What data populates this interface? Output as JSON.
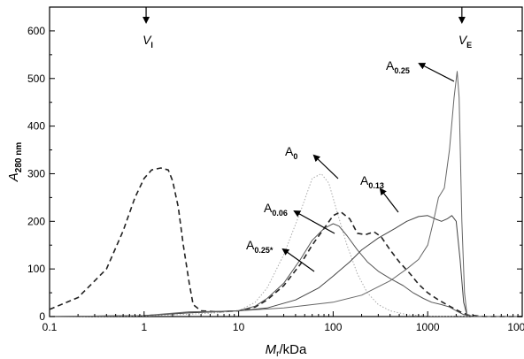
{
  "chart_data": {
    "type": "line",
    "x_scale": "log",
    "xlim": [
      0.1,
      10000
    ],
    "ylim": [
      0,
      650
    ],
    "x_ticks": [
      {
        "value": 0.1,
        "label": "0.1"
      },
      {
        "value": 1,
        "label": "1"
      },
      {
        "value": 10,
        "label": "10"
      },
      {
        "value": 100,
        "label": "100"
      },
      {
        "value": 1000,
        "label": "1000"
      },
      {
        "value": 10000,
        "label": "10000"
      }
    ],
    "y_ticks": [
      {
        "value": 0,
        "label": "0"
      },
      {
        "value": 100,
        "label": "100"
      },
      {
        "value": 200,
        "label": "200"
      },
      {
        "value": 300,
        "label": "300"
      },
      {
        "value": 400,
        "label": "400"
      },
      {
        "value": 500,
        "label": "500"
      },
      {
        "value": 600,
        "label": "600"
      }
    ],
    "xlabel": {
      "main": "M",
      "sub": "r",
      "rest": "/kDa"
    },
    "ylabel": {
      "main": "A",
      "sub": "280 nm"
    },
    "grid": false,
    "markers": [
      {
        "label": "V",
        "sub": "I",
        "x": 1.05
      },
      {
        "label": "V",
        "sub": "E",
        "x": 2300
      }
    ],
    "series": [
      {
        "name_main": "A",
        "name_sub": "0.25*",
        "style": "dashed",
        "color": "#222222",
        "points": [
          [
            0.1,
            15
          ],
          [
            0.2,
            40
          ],
          [
            0.4,
            100
          ],
          [
            0.6,
            180
          ],
          [
            0.8,
            250
          ],
          [
            1.0,
            290
          ],
          [
            1.2,
            308
          ],
          [
            1.5,
            312
          ],
          [
            1.8,
            308
          ],
          [
            2.0,
            285
          ],
          [
            2.3,
            230
          ],
          [
            2.6,
            150
          ],
          [
            3.0,
            70
          ],
          [
            3.3,
            25
          ],
          [
            4,
            12
          ],
          [
            6,
            10
          ],
          [
            10,
            12
          ],
          [
            15,
            20
          ],
          [
            20,
            35
          ],
          [
            30,
            65
          ],
          [
            45,
            110
          ],
          [
            60,
            150
          ],
          [
            80,
            185
          ],
          [
            100,
            212
          ],
          [
            120,
            220
          ],
          [
            150,
            205
          ],
          [
            180,
            175
          ],
          [
            220,
            172
          ],
          [
            270,
            178
          ],
          [
            320,
            168
          ],
          [
            400,
            140
          ],
          [
            500,
            115
          ],
          [
            650,
            90
          ],
          [
            800,
            68
          ],
          [
            1000,
            50
          ],
          [
            1300,
            35
          ],
          [
            1700,
            22
          ],
          [
            2200,
            10
          ],
          [
            2700,
            3
          ],
          [
            4000,
            0
          ],
          [
            10000,
            0
          ]
        ]
      },
      {
        "name_main": "A",
        "name_sub": "0",
        "style": "dotted",
        "color": "#aaaaaa",
        "points": [
          [
            0.1,
            0
          ],
          [
            1,
            1
          ],
          [
            3,
            5
          ],
          [
            6,
            8
          ],
          [
            10,
            12
          ],
          [
            15,
            30
          ],
          [
            20,
            60
          ],
          [
            30,
            130
          ],
          [
            45,
            220
          ],
          [
            60,
            290
          ],
          [
            75,
            300
          ],
          [
            90,
            280
          ],
          [
            110,
            220
          ],
          [
            140,
            150
          ],
          [
            180,
            90
          ],
          [
            230,
            50
          ],
          [
            300,
            25
          ],
          [
            400,
            12
          ],
          [
            600,
            4
          ],
          [
            1000,
            1
          ],
          [
            10000,
            0
          ]
        ]
      },
      {
        "name_main": "A",
        "name_sub": "0.06",
        "style": "solid",
        "color": "#555555",
        "points": [
          [
            0.1,
            0
          ],
          [
            1,
            2
          ],
          [
            3,
            8
          ],
          [
            6,
            10
          ],
          [
            10,
            12
          ],
          [
            15,
            22
          ],
          [
            20,
            38
          ],
          [
            30,
            70
          ],
          [
            45,
            120
          ],
          [
            60,
            160
          ],
          [
            80,
            185
          ],
          [
            100,
            195
          ],
          [
            115,
            190
          ],
          [
            140,
            170
          ],
          [
            180,
            140
          ],
          [
            230,
            115
          ],
          [
            300,
            95
          ],
          [
            400,
            80
          ],
          [
            550,
            65
          ],
          [
            700,
            50
          ],
          [
            900,
            38
          ],
          [
            1100,
            30
          ],
          [
            1400,
            25
          ],
          [
            1700,
            20
          ],
          [
            2000,
            12
          ],
          [
            2400,
            4
          ],
          [
            3000,
            0
          ],
          [
            10000,
            0
          ]
        ]
      },
      {
        "name_main": "A",
        "name_sub": "0.13",
        "style": "solid",
        "color": "#444444",
        "points": [
          [
            0.1,
            0
          ],
          [
            1,
            2
          ],
          [
            3,
            8
          ],
          [
            6,
            11
          ],
          [
            10,
            12
          ],
          [
            20,
            18
          ],
          [
            40,
            35
          ],
          [
            70,
            60
          ],
          [
            100,
            85
          ],
          [
            150,
            115
          ],
          [
            200,
            140
          ],
          [
            300,
            165
          ],
          [
            450,
            185
          ],
          [
            600,
            200
          ],
          [
            800,
            210
          ],
          [
            1000,
            212
          ],
          [
            1200,
            205
          ],
          [
            1400,
            200
          ],
          [
            1600,
            205
          ],
          [
            1800,
            212
          ],
          [
            2000,
            200
          ],
          [
            2200,
            120
          ],
          [
            2400,
            30
          ],
          [
            2600,
            3
          ],
          [
            3000,
            0
          ],
          [
            10000,
            0
          ]
        ]
      },
      {
        "name_main": "A",
        "name_sub": "0.25",
        "style": "solid",
        "color": "#666666",
        "points": [
          [
            0.1,
            0
          ],
          [
            1,
            2
          ],
          [
            3,
            10
          ],
          [
            6,
            11
          ],
          [
            10,
            12
          ],
          [
            30,
            18
          ],
          [
            60,
            25
          ],
          [
            100,
            30
          ],
          [
            200,
            45
          ],
          [
            400,
            75
          ],
          [
            600,
            100
          ],
          [
            800,
            120
          ],
          [
            1000,
            150
          ],
          [
            1150,
            200
          ],
          [
            1300,
            250
          ],
          [
            1500,
            270
          ],
          [
            1700,
            350
          ],
          [
            1900,
            460
          ],
          [
            2050,
            515
          ],
          [
            2150,
            460
          ],
          [
            2300,
            200
          ],
          [
            2450,
            50
          ],
          [
            2600,
            5
          ],
          [
            3000,
            0
          ],
          [
            10000,
            0
          ]
        ]
      }
    ],
    "annotations": [
      {
        "main": "A",
        "sub": "0.25",
        "series": 4
      },
      {
        "main": "A",
        "sub": "0",
        "series": 1
      },
      {
        "main": "A",
        "sub": "0.13",
        "series": 3
      },
      {
        "main": "A",
        "sub": "0.06",
        "series": 2
      },
      {
        "main": "A",
        "sub": "0.25*",
        "series": 0
      }
    ]
  }
}
